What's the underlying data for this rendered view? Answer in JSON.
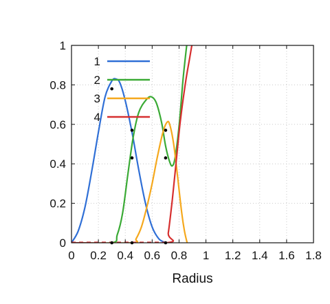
{
  "chart_data": {
    "type": "line",
    "title": "",
    "xlabel": "Radius",
    "ylabel": "",
    "xlim": [
      0,
      1.8
    ],
    "ylim": [
      0,
      1
    ],
    "grid": true,
    "legend_position": "top-left",
    "x_ticks": [
      {
        "value": 0,
        "label": "0"
      },
      {
        "value": 0.2,
        "label": "0.2"
      },
      {
        "value": 0.4,
        "label": "0.4"
      },
      {
        "value": 0.6,
        "label": "0.6"
      },
      {
        "value": 0.8,
        "label": "0.8"
      },
      {
        "value": 1.0,
        "label": "1"
      },
      {
        "value": 1.2,
        "label": "1.2"
      },
      {
        "value": 1.4,
        "label": "1.4"
      },
      {
        "value": 1.6,
        "label": "1.6"
      },
      {
        "value": 1.8,
        "label": "1.8"
      }
    ],
    "y_ticks": [
      {
        "value": 0,
        "label": "0"
      },
      {
        "value": 0.2,
        "label": "0.2"
      },
      {
        "value": 0.4,
        "label": "0.4"
      },
      {
        "value": 0.6,
        "label": "0.6"
      },
      {
        "value": 0.8,
        "label": "0.8"
      },
      {
        "value": 1.0,
        "label": "1"
      }
    ],
    "series": [
      {
        "name": "1",
        "color": "#2f6fd6",
        "points": [
          [
            0.0,
            0.0
          ],
          [
            0.05,
            0.06
          ],
          [
            0.1,
            0.18
          ],
          [
            0.15,
            0.36
          ],
          [
            0.2,
            0.56
          ],
          [
            0.25,
            0.74
          ],
          [
            0.3,
            0.82
          ],
          [
            0.33,
            0.83
          ],
          [
            0.36,
            0.81
          ],
          [
            0.4,
            0.72
          ],
          [
            0.45,
            0.56
          ],
          [
            0.5,
            0.37
          ],
          [
            0.55,
            0.2
          ],
          [
            0.6,
            0.08
          ],
          [
            0.65,
            0.02
          ],
          [
            0.7,
            0.0
          ]
        ]
      },
      {
        "name": "2",
        "color": "#3aaa35",
        "points": [
          [
            0.0,
            0.0
          ],
          [
            0.3,
            0.0
          ],
          [
            0.34,
            0.04
          ],
          [
            0.38,
            0.15
          ],
          [
            0.42,
            0.35
          ],
          [
            0.46,
            0.54
          ],
          [
            0.5,
            0.66
          ],
          [
            0.55,
            0.72
          ],
          [
            0.59,
            0.74
          ],
          [
            0.63,
            0.71
          ],
          [
            0.67,
            0.61
          ],
          [
            0.7,
            0.49
          ],
          [
            0.73,
            0.41
          ],
          [
            0.75,
            0.39
          ],
          [
            0.77,
            0.43
          ],
          [
            0.8,
            0.59
          ],
          [
            0.83,
            0.83
          ],
          [
            0.86,
            1.02
          ]
        ]
      },
      {
        "name": "3",
        "color": "#f5a81c",
        "points": [
          [
            0.0,
            0.0
          ],
          [
            0.45,
            0.0
          ],
          [
            0.48,
            0.02
          ],
          [
            0.52,
            0.08
          ],
          [
            0.56,
            0.18
          ],
          [
            0.6,
            0.3
          ],
          [
            0.64,
            0.44
          ],
          [
            0.68,
            0.56
          ],
          [
            0.71,
            0.61
          ],
          [
            0.73,
            0.6
          ],
          [
            0.76,
            0.5
          ],
          [
            0.79,
            0.33
          ],
          [
            0.82,
            0.15
          ],
          [
            0.84,
            0.06
          ],
          [
            0.86,
            0.0
          ]
        ]
      },
      {
        "name": "4",
        "color": "#d62f2f",
        "dashed_segment_until": 0.7,
        "points": [
          [
            0.0,
            0.0
          ],
          [
            0.7,
            0.0
          ],
          [
            0.72,
            0.05
          ],
          [
            0.75,
            0.22
          ],
          [
            0.78,
            0.42
          ],
          [
            0.81,
            0.62
          ],
          [
            0.85,
            0.82
          ],
          [
            0.88,
            0.94
          ],
          [
            0.9,
            1.02
          ]
        ]
      }
    ],
    "markers": [
      [
        0.3,
        0.0
      ],
      [
        0.45,
        0.0
      ],
      [
        0.7,
        0.0
      ],
      [
        0.3,
        0.78
      ],
      [
        0.45,
        0.57
      ],
      [
        0.45,
        0.43
      ],
      [
        0.7,
        0.57
      ],
      [
        0.7,
        0.43
      ]
    ]
  }
}
